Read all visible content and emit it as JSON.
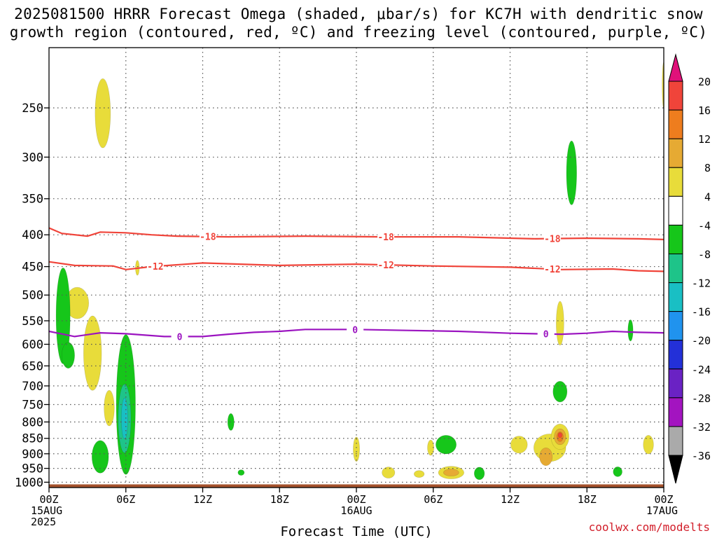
{
  "title_line1": "2025081500 HRRR Forecast Omega (shaded, μbar/s) for KC7H with dendritic snow",
  "title_line2": "growth region (contoured, red, ºC) and freezing level (contoured, purple, ºC)",
  "credit": "coolwx.com/modelts",
  "chart_data": {
    "type": "heatmap",
    "title": "2025081500 HRRR Forecast Omega (shaded, μbar/s) for KC7H with dendritic snow growth region (contoured, red, ºC) and freezing level (contoured, purple, ºC)",
    "xlabel": "Forecast Time (UTC)",
    "ylabel": "",
    "x_unit": "forecast hour",
    "xlim": [
      0,
      48
    ],
    "y_unit": "hPa",
    "ylim": [
      1020,
      200
    ],
    "y_scale": "log-pressure",
    "grid": true,
    "x_ticks": [
      {
        "hour": 0,
        "lines": [
          "00Z",
          "15AUG",
          "2025"
        ]
      },
      {
        "hour": 6,
        "lines": [
          "06Z"
        ]
      },
      {
        "hour": 12,
        "lines": [
          "12Z"
        ]
      },
      {
        "hour": 18,
        "lines": [
          "18Z"
        ]
      },
      {
        "hour": 24,
        "lines": [
          "00Z",
          "16AUG"
        ]
      },
      {
        "hour": 30,
        "lines": [
          "06Z"
        ]
      },
      {
        "hour": 36,
        "lines": [
          "12Z"
        ]
      },
      {
        "hour": 42,
        "lines": [
          "18Z"
        ]
      },
      {
        "hour": 48,
        "lines": [
          "00Z",
          "17AUG"
        ]
      }
    ],
    "y_ticks": [
      250,
      300,
      350,
      400,
      450,
      500,
      550,
      600,
      650,
      700,
      750,
      800,
      850,
      900,
      950,
      1000
    ],
    "colorbar": {
      "unit": "μbar/s",
      "labels": [
        20,
        16,
        12,
        8,
        4,
        -4,
        -8,
        -12,
        -16,
        -20,
        -24,
        -28,
        -32,
        -36
      ],
      "bands": [
        {
          "lo": 20,
          "hi": 24,
          "color": "#e0117a"
        },
        {
          "lo": 16,
          "hi": 20,
          "color": "#f0443a"
        },
        {
          "lo": 12,
          "hi": 16,
          "color": "#ee7d1e"
        },
        {
          "lo": 8,
          "hi": 12,
          "color": "#e6aa33"
        },
        {
          "lo": 4,
          "hi": 8,
          "color": "#e8dc3a"
        },
        {
          "lo": -4,
          "hi": 4,
          "color": "#ffffff"
        },
        {
          "lo": -8,
          "hi": -4,
          "color": "#16c61a"
        },
        {
          "lo": -12,
          "hi": -8,
          "color": "#1ec489"
        },
        {
          "lo": -16,
          "hi": -12,
          "color": "#19bfc4"
        },
        {
          "lo": -20,
          "hi": -16,
          "color": "#2093ee"
        },
        {
          "lo": -24,
          "hi": -20,
          "color": "#2330d8"
        },
        {
          "lo": -28,
          "hi": -24,
          "color": "#6a22c4"
        },
        {
          "lo": -32,
          "hi": -28,
          "color": "#a314c0"
        },
        {
          "lo": -36,
          "hi": -32,
          "color": "#aaaaaa"
        },
        {
          "lo": -40,
          "hi": -36,
          "color": "#000000"
        }
      ]
    },
    "ground_color": "#a5522c",
    "ground_top_hPa": 1008,
    "contours": [
      {
        "name": "-18",
        "label": "-18",
        "color": "#f0443a",
        "points": [
          [
            0,
            390
          ],
          [
            1,
            398
          ],
          [
            3,
            402
          ],
          [
            4,
            396
          ],
          [
            6,
            397
          ],
          [
            8,
            400
          ],
          [
            10,
            402
          ],
          [
            14,
            403
          ],
          [
            20,
            402
          ],
          [
            26,
            403
          ],
          [
            32,
            403
          ],
          [
            38,
            406
          ],
          [
            42,
            405
          ],
          [
            46,
            406
          ],
          [
            48,
            407
          ]
        ],
        "label_hours": [
          12.4,
          26.3,
          39.3
        ]
      },
      {
        "name": "-12",
        "label": "-12",
        "color": "#f0443a",
        "points": [
          [
            0,
            442
          ],
          [
            2,
            448
          ],
          [
            5,
            449
          ],
          [
            6,
            455
          ],
          [
            8,
            450
          ],
          [
            12,
            444
          ],
          [
            18,
            448
          ],
          [
            24,
            446
          ],
          [
            30,
            449
          ],
          [
            36,
            451
          ],
          [
            40,
            455
          ],
          [
            44,
            454
          ],
          [
            46,
            457
          ],
          [
            48,
            458
          ]
        ],
        "label_hours": [
          8.3,
          26.3,
          39.3
        ]
      },
      {
        "name": "0",
        "label": "0",
        "color": "#9b14c0",
        "points": [
          [
            0,
            572
          ],
          [
            2,
            583
          ],
          [
            4,
            575
          ],
          [
            6,
            577
          ],
          [
            9,
            583
          ],
          [
            12,
            583
          ],
          [
            14,
            578
          ],
          [
            16,
            574
          ],
          [
            18,
            572
          ],
          [
            20,
            568
          ],
          [
            24,
            568
          ],
          [
            28,
            570
          ],
          [
            32,
            572
          ],
          [
            36,
            576
          ],
          [
            40,
            578
          ],
          [
            42,
            576
          ],
          [
            44,
            572
          ],
          [
            46,
            574
          ],
          [
            48,
            575
          ]
        ],
        "label_hours": [
          10.2,
          23.9,
          38.8
        ]
      }
    ],
    "features": [
      {
        "value": 6,
        "hour": 4.2,
        "hPa": 255,
        "w_hours": 1.2,
        "h_hPa": 65
      },
      {
        "value": 6,
        "hour": 2.2,
        "hPa": 515,
        "w_hours": 1.8,
        "h_hPa": 60
      },
      {
        "value": 6,
        "hour": 3.4,
        "hPa": 620,
        "w_hours": 1.4,
        "h_hPa": 170
      },
      {
        "value": 6,
        "hour": 4.7,
        "hPa": 760,
        "w_hours": 0.8,
        "h_hPa": 100
      },
      {
        "value": 6,
        "hour": 6.9,
        "hPa": 452,
        "w_hours": 0.3,
        "h_hPa": 25
      },
      {
        "value": 6,
        "hour": 24.0,
        "hPa": 885,
        "w_hours": 0.5,
        "h_hPa": 80
      },
      {
        "value": 6,
        "hour": 26.5,
        "hPa": 965,
        "w_hours": 1.0,
        "h_hPa": 40
      },
      {
        "value": 6,
        "hour": 28.9,
        "hPa": 970,
        "w_hours": 0.8,
        "h_hPa": 25
      },
      {
        "value": 6,
        "hour": 29.8,
        "hPa": 880,
        "w_hours": 0.5,
        "h_hPa": 50
      },
      {
        "value": 6,
        "hour": 36.7,
        "hPa": 870,
        "w_hours": 1.3,
        "h_hPa": 55
      },
      {
        "value": 6,
        "hour": 39.9,
        "hPa": 555,
        "w_hours": 0.6,
        "h_hPa": 90
      },
      {
        "value": 6,
        "hour": 46.8,
        "hPa": 870,
        "w_hours": 0.8,
        "h_hPa": 60
      },
      {
        "value": 6,
        "hour": 48.0,
        "hPa": 230,
        "w_hours": 0.25,
        "h_hPa": 40
      },
      {
        "value": 6,
        "hour": 31.4,
        "hPa": 965,
        "w_hours": 2.0,
        "h_hPa": 45
      },
      {
        "value": 10,
        "hour": 31.4,
        "hPa": 965,
        "w_hours": 1.2,
        "h_hPa": 25
      },
      {
        "value": 6,
        "hour": 39.1,
        "hPa": 880,
        "w_hours": 2.5,
        "h_hPa": 90
      },
      {
        "value": 10,
        "hour": 38.8,
        "hPa": 910,
        "w_hours": 1.0,
        "h_hPa": 60
      },
      {
        "value": 6,
        "hour": 39.9,
        "hPa": 845,
        "w_hours": 1.4,
        "h_hPa": 80
      },
      {
        "value": 10,
        "hour": 39.9,
        "hPa": 845,
        "w_hours": 0.9,
        "h_hPa": 50
      },
      {
        "value": 14,
        "hour": 39.9,
        "hPa": 845,
        "w_hours": 0.5,
        "h_hPa": 30
      },
      {
        "value": 18,
        "hour": 39.9,
        "hPa": 840,
        "w_hours": 0.3,
        "h_hPa": 15
      },
      {
        "value": -6,
        "hour": 1.1,
        "hPa": 540,
        "w_hours": 1.1,
        "h_hPa": 190
      },
      {
        "value": -6,
        "hour": 1.5,
        "hPa": 625,
        "w_hours": 1.0,
        "h_hPa": 60
      },
      {
        "value": -6,
        "hour": 4.0,
        "hPa": 910,
        "w_hours": 1.3,
        "h_hPa": 110
      },
      {
        "value": -6,
        "hour": 6.0,
        "hPa": 750,
        "w_hours": 1.5,
        "h_hPa": 380
      },
      {
        "value": -10,
        "hour": 5.9,
        "hPa": 790,
        "w_hours": 1.0,
        "h_hPa": 200
      },
      {
        "value": -14,
        "hour": 5.9,
        "hPa": 790,
        "w_hours": 0.5,
        "h_hPa": 120
      },
      {
        "value": -6,
        "hour": 14.2,
        "hPa": 800,
        "w_hours": 0.5,
        "h_hPa": 50
      },
      {
        "value": -6,
        "hour": 15.0,
        "hPa": 965,
        "w_hours": 0.5,
        "h_hPa": 20
      },
      {
        "value": -6,
        "hour": 31.0,
        "hPa": 870,
        "w_hours": 1.6,
        "h_hPa": 60
      },
      {
        "value": -6,
        "hour": 33.6,
        "hPa": 968,
        "w_hours": 0.8,
        "h_hPa": 45
      },
      {
        "value": -6,
        "hour": 40.8,
        "hPa": 318,
        "w_hours": 0.8,
        "h_hPa": 75
      },
      {
        "value": -6,
        "hour": 39.9,
        "hPa": 715,
        "w_hours": 1.1,
        "h_hPa": 55
      },
      {
        "value": -6,
        "hour": 45.4,
        "hPa": 570,
        "w_hours": 0.4,
        "h_hPa": 45
      },
      {
        "value": -6,
        "hour": 44.4,
        "hPa": 962,
        "w_hours": 0.7,
        "h_hPa": 35
      }
    ]
  }
}
